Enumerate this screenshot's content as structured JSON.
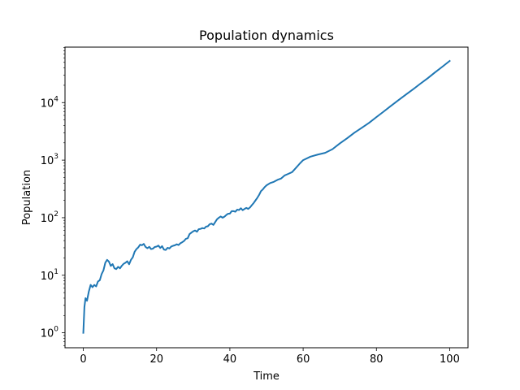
{
  "chart_data": {
    "type": "line",
    "title": "Population dynamics",
    "xlabel": "Time",
    "ylabel": "Population",
    "xlim": [
      -5,
      105
    ],
    "ylim": [
      0.55,
      92000
    ],
    "yscale": "log",
    "grid": false,
    "x_ticks": [
      {
        "value": 0,
        "label": "0"
      },
      {
        "value": 20,
        "label": "20"
      },
      {
        "value": 40,
        "label": "40"
      },
      {
        "value": 60,
        "label": "60"
      },
      {
        "value": 80,
        "label": "80"
      },
      {
        "value": 100,
        "label": "100"
      }
    ],
    "y_ticks": [
      {
        "value": 1,
        "base": "10",
        "exp": "0"
      },
      {
        "value": 10,
        "base": "10",
        "exp": "1"
      },
      {
        "value": 100,
        "base": "10",
        "exp": "2"
      },
      {
        "value": 1000,
        "base": "10",
        "exp": "3"
      },
      {
        "value": 10000,
        "base": "10",
        "exp": "4"
      }
    ],
    "series": [
      {
        "color": "#1f77b4",
        "x": [
          0,
          0.3,
          0.6,
          1,
          1.5,
          2,
          2.5,
          3,
          3.5,
          4,
          4.5,
          5,
          5.5,
          6,
          6.5,
          7,
          7.5,
          8,
          8.5,
          9,
          9.5,
          10,
          10.5,
          11,
          11.5,
          12,
          12.5,
          13,
          13.5,
          14,
          14.5,
          15,
          15.5,
          16,
          16.5,
          17,
          17.5,
          18,
          18.5,
          19,
          19.5,
          20,
          20.5,
          21,
          21.5,
          22,
          22.5,
          23,
          23.5,
          24,
          24.5,
          25,
          25.5,
          26,
          26.5,
          27,
          27.5,
          28,
          28.5,
          29,
          29.5,
          30,
          30.5,
          31,
          31.5,
          32,
          32.5,
          33,
          33.5,
          34,
          34.5,
          35,
          35.5,
          36,
          36.5,
          37,
          37.5,
          38,
          38.5,
          39,
          39.5,
          40,
          40.5,
          41,
          41.5,
          42,
          42.5,
          43,
          43.5,
          44,
          44.5,
          45,
          45.5,
          46,
          46.5,
          47,
          47.5,
          48,
          48.5,
          49,
          49.5,
          50,
          51,
          52,
          53,
          54,
          55,
          56,
          57,
          58,
          59,
          60,
          62,
          64,
          66,
          68,
          70,
          72,
          74,
          76,
          78,
          80,
          82,
          84,
          86,
          88,
          90,
          92,
          94,
          96,
          98,
          100
        ],
        "y": [
          1,
          2.8,
          4,
          3.6,
          5.2,
          6.8,
          6.2,
          6.8,
          6.4,
          7.8,
          8.2,
          10.5,
          12.2,
          16.5,
          18.5,
          17.2,
          14.5,
          15.6,
          13.2,
          12.8,
          14,
          13.2,
          14.6,
          15.8,
          16.5,
          17.5,
          15.5,
          18.5,
          20.5,
          25.5,
          28.5,
          30.5,
          34,
          33.2,
          35,
          31,
          29.5,
          31.2,
          28.5,
          29,
          31,
          31.5,
          32.8,
          29.8,
          32,
          28,
          27.5,
          30,
          29.2,
          31.5,
          32.5,
          33.2,
          34.5,
          33.5,
          36,
          37.5,
          39.5,
          43,
          44,
          52,
          55,
          58,
          60,
          57,
          63,
          64,
          66,
          65,
          70,
          71,
          77,
          79,
          75,
          84,
          94,
          100,
          105,
          100,
          104,
          111,
          117,
          118,
          130,
          130,
          127,
          138,
          136,
          146,
          135,
          142,
          148,
          142,
          151,
          165,
          180,
          200,
          222,
          250,
          290,
          310,
          340,
          365,
          400,
          420,
          455,
          480,
          545,
          580,
          620,
          730,
          860,
          1000,
          1150,
          1250,
          1340,
          1550,
          1950,
          2400,
          3000,
          3650,
          4450,
          5600,
          7000,
          8800,
          11000,
          13700,
          17000,
          21300,
          26500,
          33500,
          42000,
          53000
        ]
      }
    ]
  }
}
